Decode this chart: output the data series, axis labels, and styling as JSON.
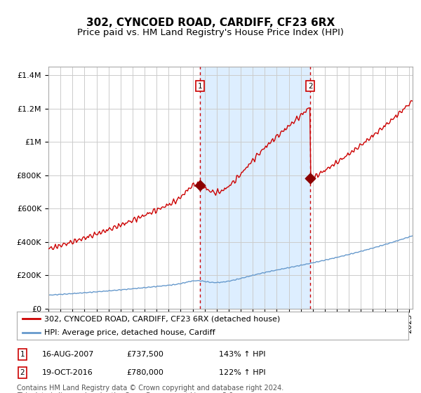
{
  "title": "302, CYNCOED ROAD, CARDIFF, CF23 6RX",
  "subtitle": "Price paid vs. HM Land Registry's House Price Index (HPI)",
  "legend_property": "302, CYNCOED ROAD, CARDIFF, CF23 6RX (detached house)",
  "legend_hpi": "HPI: Average price, detached house, Cardiff",
  "footnote": "Contains HM Land Registry data © Crown copyright and database right 2024.\nThis data is licensed under the Open Government Licence v3.0.",
  "sale1_date": "16-AUG-2007",
  "sale1_price": "£737,500",
  "sale1_hpi": "143% ↑ HPI",
  "sale1_year": 2007.62,
  "sale1_value": 737500,
  "sale2_date": "19-OCT-2016",
  "sale2_price": "£780,000",
  "sale2_hpi": "122% ↑ HPI",
  "sale2_year": 2016.8,
  "sale2_value": 780000,
  "ylim": [
    0,
    1450000
  ],
  "xlim_start": 1995.0,
  "xlim_end": 2025.3,
  "property_line_color": "#cc0000",
  "hpi_line_color": "#6699cc",
  "shade_color": "#ddeeff",
  "marker_color": "#8b0000",
  "vline_color": "#cc0000",
  "grid_color": "#cccccc",
  "background_color": "#ffffff",
  "title_fontsize": 11,
  "subtitle_fontsize": 9.5,
  "axis_fontsize": 8,
  "legend_fontsize": 8,
  "footnote_fontsize": 7
}
